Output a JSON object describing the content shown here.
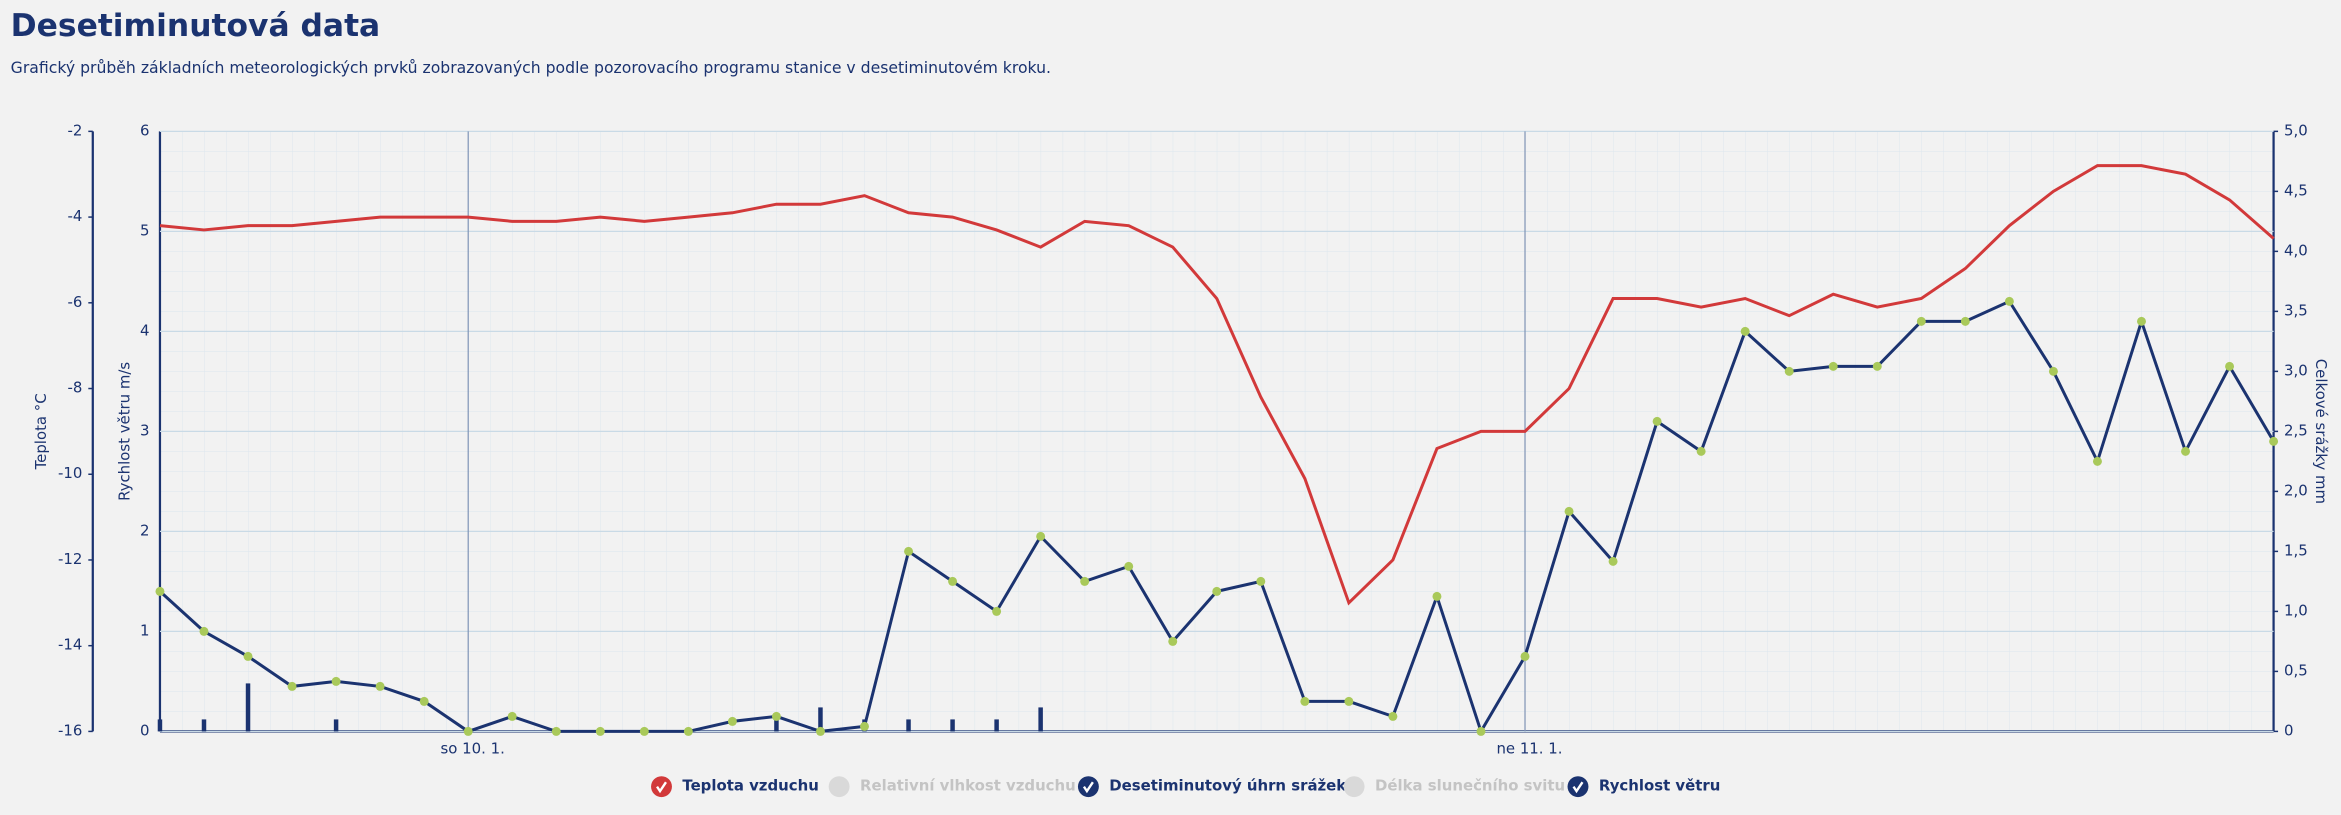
{
  "header": {
    "title": "Desetiminutová data",
    "subtitle": "Grafický průběh základních meteorologických prvků zobrazovaných podle pozorovacího programu stanice v desetiminutovém kroku."
  },
  "chart_data": {
    "type": "line",
    "categories": [
      null,
      null,
      null,
      null,
      null,
      null,
      null,
      "so 10. 1.",
      null,
      null,
      null,
      null,
      null,
      null,
      null,
      null,
      null,
      null,
      null,
      null,
      null,
      null,
      null,
      null,
      null,
      null,
      null,
      null,
      null,
      null,
      null,
      "ne 11. 1.",
      null,
      null,
      null,
      null,
      null,
      null,
      null,
      null,
      null,
      null,
      null,
      null,
      null,
      null,
      null,
      null,
      null
    ],
    "series": [
      {
        "name": "Teplota vzduchu",
        "color": "#d2393a",
        "axis": "temp",
        "values": [
          -4.2,
          -4.3,
          -4.2,
          -4.2,
          -4.1,
          -4.0,
          -4.0,
          -4.0,
          -4.1,
          -4.1,
          -4.0,
          -4.1,
          -4.0,
          -3.9,
          -3.7,
          -3.7,
          -3.5,
          -3.9,
          -4.0,
          -4.3,
          -4.7,
          -4.1,
          -4.2,
          -4.7,
          -5.9,
          -8.2,
          -10.1,
          -13.0,
          -12.0,
          -9.4,
          -9.0,
          -9.0,
          -8.0,
          -5.9,
          -5.9,
          -6.1,
          -5.9,
          -6.3,
          -5.8,
          -6.1,
          -5.9,
          -5.2,
          -4.2,
          -3.4,
          -2.8,
          -2.8,
          -3.0,
          -3.6,
          -4.5
        ]
      },
      {
        "name": "Desetiminutový úhrn srážek",
        "color": "#1b3370",
        "axis": "y2",
        "values": [
          0.1,
          0.1,
          0.4,
          0,
          0.1,
          0,
          0,
          0,
          0,
          0,
          0,
          0,
          0,
          0,
          0.1,
          0.2,
          0.1,
          0.1,
          0.1,
          0.1,
          0.2,
          0,
          0,
          0,
          0,
          0,
          0,
          0,
          0,
          0,
          0,
          0,
          0,
          0,
          0,
          0,
          0,
          0,
          0,
          0,
          0,
          0,
          0,
          0,
          0,
          0,
          0,
          0,
          0
        ]
      },
      {
        "name": "Rychlost větru",
        "color": "#1b3370",
        "marker_color": "#a9c95a",
        "axis": "y",
        "values": [
          1.4,
          1.0,
          0.75,
          0.45,
          0.5,
          0.45,
          0.3,
          0,
          0.15,
          0,
          0,
          0,
          0,
          0.1,
          0.15,
          0,
          0.05,
          1.8,
          1.5,
          1.2,
          1.95,
          1.5,
          1.65,
          0.9,
          1.4,
          1.5,
          0.3,
          0.3,
          0.15,
          1.35,
          0,
          0.75,
          2.2,
          1.7,
          3.1,
          2.8,
          4.0,
          3.6,
          3.65,
          3.65,
          4.1,
          4.1,
          4.3,
          3.6,
          2.7,
          4.1,
          2.8,
          3.65,
          2.9
        ]
      }
    ],
    "legend": [
      {
        "name": "Teplota vzduchu",
        "active": true,
        "color": "#d2393a"
      },
      {
        "name": "Relativní vlhkost vzduchu",
        "active": false,
        "color": "#d9d9d9"
      },
      {
        "name": "Desetiminutový úhrn srážek",
        "active": true,
        "color": "#1b3370"
      },
      {
        "name": "Délka slunečního svitu",
        "active": false,
        "color": "#d9d9d9"
      },
      {
        "name": "Rychlost větru",
        "active": true,
        "color": "#1b3370"
      }
    ],
    "temp_label": "Teplota °C",
    "temp_lim": [
      -16,
      -2
    ],
    "temp_ticks": [
      -16,
      -14,
      -12,
      -10,
      -8,
      -6,
      -4,
      -2
    ],
    "ylabel": "Rychlost větru m/s",
    "ylim": [
      0,
      6
    ],
    "yticks": [
      0,
      1,
      2,
      3,
      4,
      5,
      6
    ],
    "y2label": "Celkové srážky mm",
    "y2lim": [
      0,
      5
    ],
    "y2ticks": [
      0,
      {
        "value": 0.5,
        "label": "0,5"
      },
      {
        "value": 1,
        "label": "1,0"
      },
      {
        "value": 1.5,
        "label": "1,5"
      },
      {
        "value": 2,
        "label": "2,0"
      },
      {
        "value": 2.5,
        "label": "2,5"
      },
      {
        "value": 3,
        "label": "3,0"
      },
      {
        "value": 3.5,
        "label": "3,5"
      },
      {
        "value": 4,
        "label": "4,0"
      },
      {
        "value": 4.5,
        "label": "4,5"
      },
      {
        "value": 5,
        "label": "5,0"
      }
    ],
    "grid": true
  }
}
